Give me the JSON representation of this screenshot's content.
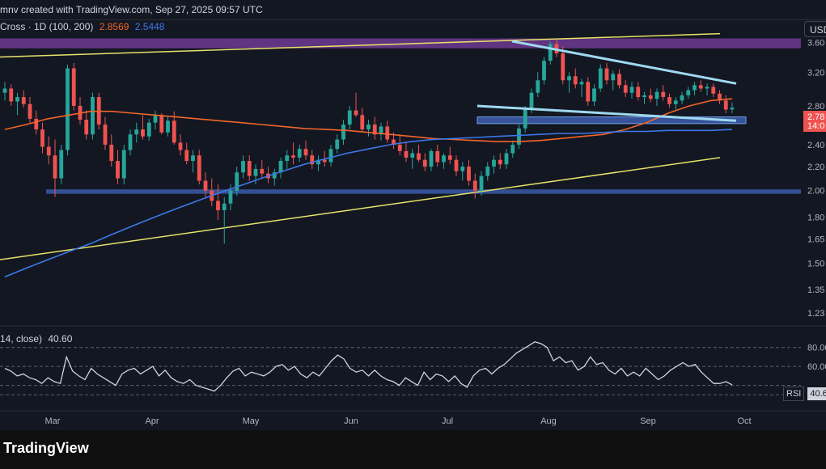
{
  "header": {
    "credit_text": "mnv created with TradingView.com, Sep 27, 2025 09:57 UTC",
    "indicator_label": "Cross · 1D (100, 200)",
    "ma_fast_value": "2.8569",
    "ma_slow_value": "2.5448",
    "currency": "USD"
  },
  "price_badge": {
    "price": "2.78",
    "countdown": "14:0"
  },
  "rsi": {
    "legend_label": "14, close)",
    "legend_value": "40.60",
    "badge_label": "RSI",
    "badge_value": "40.6"
  },
  "footer": {
    "brand": "TradingView"
  },
  "colors": {
    "background": "#131722",
    "up": "#26a69a",
    "down": "#ef5350",
    "ma_fast": "#f2652a",
    "ma_slow": "#3c78e8",
    "trendline": "#e7e36a",
    "wedge": "#9fd8f0",
    "zone_blue": "#3a5aa8",
    "zone_purple": "#7b3fa0",
    "rsi_line": "#d1d4dc"
  },
  "chart_data": {
    "type": "candlestick",
    "x_ticks": [
      "Mar",
      "Apr",
      "May",
      "Jun",
      "Jul",
      "Aug",
      "Sep",
      "Oct"
    ],
    "y_ticks": [
      "3.60",
      "3.20",
      "2.80",
      "2.40",
      "2.20",
      "2.00",
      "1.80",
      "1.65",
      "1.50",
      "1.35",
      "1.23"
    ],
    "y_scale": "log",
    "rsi_ticks": [
      "80.00",
      "60.00"
    ],
    "rsi_levels": [
      80,
      60,
      40,
      30
    ],
    "candles": [
      {
        "o": 2.95,
        "h": 3.08,
        "l": 2.86,
        "c": 3.0
      },
      {
        "o": 3.0,
        "h": 3.05,
        "l": 2.8,
        "c": 2.85
      },
      {
        "o": 2.85,
        "h": 2.95,
        "l": 2.7,
        "c": 2.9
      },
      {
        "o": 2.9,
        "h": 2.98,
        "l": 2.78,
        "c": 2.82
      },
      {
        "o": 2.82,
        "h": 2.9,
        "l": 2.62,
        "c": 2.66
      },
      {
        "o": 2.66,
        "h": 2.75,
        "l": 2.5,
        "c": 2.55
      },
      {
        "o": 2.55,
        "h": 2.62,
        "l": 2.32,
        "c": 2.38
      },
      {
        "o": 2.38,
        "h": 2.48,
        "l": 2.22,
        "c": 2.3
      },
      {
        "o": 2.3,
        "h": 2.45,
        "l": 1.95,
        "c": 2.1
      },
      {
        "o": 2.1,
        "h": 2.4,
        "l": 2.05,
        "c": 2.35
      },
      {
        "o": 2.35,
        "h": 3.3,
        "l": 2.3,
        "c": 3.25
      },
      {
        "o": 3.25,
        "h": 3.32,
        "l": 2.75,
        "c": 2.8
      },
      {
        "o": 2.8,
        "h": 2.9,
        "l": 2.6,
        "c": 2.65
      },
      {
        "o": 2.65,
        "h": 2.75,
        "l": 2.45,
        "c": 2.5
      },
      {
        "o": 2.5,
        "h": 2.95,
        "l": 2.45,
        "c": 2.9
      },
      {
        "o": 2.9,
        "h": 2.95,
        "l": 2.55,
        "c": 2.6
      },
      {
        "o": 2.6,
        "h": 2.68,
        "l": 2.35,
        "c": 2.4
      },
      {
        "o": 2.4,
        "h": 2.5,
        "l": 2.2,
        "c": 2.25
      },
      {
        "o": 2.25,
        "h": 2.35,
        "l": 2.05,
        "c": 2.1
      },
      {
        "o": 2.1,
        "h": 2.4,
        "l": 2.05,
        "c": 2.35
      },
      {
        "o": 2.35,
        "h": 2.55,
        "l": 2.3,
        "c": 2.5
      },
      {
        "o": 2.5,
        "h": 2.62,
        "l": 2.42,
        "c": 2.55
      },
      {
        "o": 2.55,
        "h": 2.7,
        "l": 2.45,
        "c": 2.48
      },
      {
        "o": 2.48,
        "h": 2.66,
        "l": 2.44,
        "c": 2.62
      },
      {
        "o": 2.62,
        "h": 2.75,
        "l": 2.55,
        "c": 2.7
      },
      {
        "o": 2.7,
        "h": 2.72,
        "l": 2.5,
        "c": 2.52
      },
      {
        "o": 2.52,
        "h": 2.68,
        "l": 2.48,
        "c": 2.64
      },
      {
        "o": 2.64,
        "h": 2.74,
        "l": 2.4,
        "c": 2.42
      },
      {
        "o": 2.42,
        "h": 2.5,
        "l": 2.3,
        "c": 2.35
      },
      {
        "o": 2.35,
        "h": 2.42,
        "l": 2.22,
        "c": 2.25
      },
      {
        "o": 2.25,
        "h": 2.35,
        "l": 2.15,
        "c": 2.3
      },
      {
        "o": 2.3,
        "h": 2.35,
        "l": 2.05,
        "c": 2.08
      },
      {
        "o": 2.08,
        "h": 2.15,
        "l": 1.95,
        "c": 2.0
      },
      {
        "o": 2.0,
        "h": 2.1,
        "l": 1.88,
        "c": 1.92
      },
      {
        "o": 1.92,
        "h": 2.05,
        "l": 1.78,
        "c": 1.85
      },
      {
        "o": 1.85,
        "h": 1.95,
        "l": 1.62,
        "c": 1.9
      },
      {
        "o": 1.9,
        "h": 2.05,
        "l": 1.85,
        "c": 2.0
      },
      {
        "o": 2.0,
        "h": 2.2,
        "l": 1.96,
        "c": 2.15
      },
      {
        "o": 2.15,
        "h": 2.3,
        "l": 2.1,
        "c": 2.25
      },
      {
        "o": 2.25,
        "h": 2.3,
        "l": 2.08,
        "c": 2.12
      },
      {
        "o": 2.12,
        "h": 2.22,
        "l": 2.05,
        "c": 2.18
      },
      {
        "o": 2.18,
        "h": 2.26,
        "l": 2.1,
        "c": 2.14
      },
      {
        "o": 2.14,
        "h": 2.2,
        "l": 2.06,
        "c": 2.1
      },
      {
        "o": 2.1,
        "h": 2.18,
        "l": 2.04,
        "c": 2.15
      },
      {
        "o": 2.15,
        "h": 2.28,
        "l": 2.1,
        "c": 2.25
      },
      {
        "o": 2.25,
        "h": 2.35,
        "l": 2.18,
        "c": 2.3
      },
      {
        "o": 2.3,
        "h": 2.42,
        "l": 2.22,
        "c": 2.28
      },
      {
        "o": 2.28,
        "h": 2.4,
        "l": 2.24,
        "c": 2.36
      },
      {
        "o": 2.36,
        "h": 2.44,
        "l": 2.26,
        "c": 2.3
      },
      {
        "o": 2.3,
        "h": 2.35,
        "l": 2.18,
        "c": 2.22
      },
      {
        "o": 2.22,
        "h": 2.3,
        "l": 2.16,
        "c": 2.26
      },
      {
        "o": 2.26,
        "h": 2.34,
        "l": 2.2,
        "c": 2.24
      },
      {
        "o": 2.24,
        "h": 2.4,
        "l": 2.2,
        "c": 2.36
      },
      {
        "o": 2.36,
        "h": 2.5,
        "l": 2.32,
        "c": 2.45
      },
      {
        "o": 2.45,
        "h": 2.65,
        "l": 2.4,
        "c": 2.6
      },
      {
        "o": 2.6,
        "h": 2.8,
        "l": 2.55,
        "c": 2.75
      },
      {
        "o": 2.75,
        "h": 2.95,
        "l": 2.68,
        "c": 2.7
      },
      {
        "o": 2.7,
        "h": 2.78,
        "l": 2.52,
        "c": 2.55
      },
      {
        "o": 2.55,
        "h": 2.65,
        "l": 2.48,
        "c": 2.6
      },
      {
        "o": 2.6,
        "h": 2.68,
        "l": 2.45,
        "c": 2.5
      },
      {
        "o": 2.5,
        "h": 2.62,
        "l": 2.44,
        "c": 2.58
      },
      {
        "o": 2.58,
        "h": 2.64,
        "l": 2.42,
        "c": 2.45
      },
      {
        "o": 2.45,
        "h": 2.52,
        "l": 2.36,
        "c": 2.4
      },
      {
        "o": 2.4,
        "h": 2.5,
        "l": 2.3,
        "c": 2.34
      },
      {
        "o": 2.34,
        "h": 2.42,
        "l": 2.24,
        "c": 2.28
      },
      {
        "o": 2.28,
        "h": 2.36,
        "l": 2.18,
        "c": 2.32
      },
      {
        "o": 2.32,
        "h": 2.4,
        "l": 2.24,
        "c": 2.26
      },
      {
        "o": 2.26,
        "h": 2.32,
        "l": 2.16,
        "c": 2.2
      },
      {
        "o": 2.2,
        "h": 2.36,
        "l": 2.16,
        "c": 2.34
      },
      {
        "o": 2.34,
        "h": 2.4,
        "l": 2.2,
        "c": 2.24
      },
      {
        "o": 2.24,
        "h": 2.32,
        "l": 2.18,
        "c": 2.3
      },
      {
        "o": 2.3,
        "h": 2.38,
        "l": 2.22,
        "c": 2.26
      },
      {
        "o": 2.26,
        "h": 2.3,
        "l": 2.12,
        "c": 2.16
      },
      {
        "o": 2.16,
        "h": 2.24,
        "l": 2.08,
        "c": 2.2
      },
      {
        "o": 2.2,
        "h": 2.26,
        "l": 2.04,
        "c": 2.08
      },
      {
        "o": 2.08,
        "h": 2.14,
        "l": 1.94,
        "c": 2.0
      },
      {
        "o": 2.0,
        "h": 2.16,
        "l": 1.96,
        "c": 2.12
      },
      {
        "o": 2.12,
        "h": 2.24,
        "l": 2.08,
        "c": 2.2
      },
      {
        "o": 2.2,
        "h": 2.3,
        "l": 2.14,
        "c": 2.26
      },
      {
        "o": 2.26,
        "h": 2.32,
        "l": 2.18,
        "c": 2.22
      },
      {
        "o": 2.22,
        "h": 2.36,
        "l": 2.18,
        "c": 2.32
      },
      {
        "o": 2.32,
        "h": 2.44,
        "l": 2.28,
        "c": 2.4
      },
      {
        "o": 2.4,
        "h": 2.6,
        "l": 2.36,
        "c": 2.56
      },
      {
        "o": 2.56,
        "h": 2.8,
        "l": 2.52,
        "c": 2.76
      },
      {
        "o": 2.76,
        "h": 3.0,
        "l": 2.72,
        "c": 2.95
      },
      {
        "o": 2.95,
        "h": 3.2,
        "l": 2.9,
        "c": 3.1
      },
      {
        "o": 3.1,
        "h": 3.4,
        "l": 3.05,
        "c": 3.35
      },
      {
        "o": 3.35,
        "h": 3.62,
        "l": 3.3,
        "c": 3.58
      },
      {
        "o": 3.58,
        "h": 3.65,
        "l": 3.4,
        "c": 3.45
      },
      {
        "o": 3.45,
        "h": 3.55,
        "l": 3.05,
        "c": 3.1
      },
      {
        "o": 3.1,
        "h": 3.2,
        "l": 2.95,
        "c": 3.15
      },
      {
        "o": 3.15,
        "h": 3.25,
        "l": 3.0,
        "c": 3.05
      },
      {
        "o": 3.05,
        "h": 3.12,
        "l": 2.9,
        "c": 3.08
      },
      {
        "o": 3.08,
        "h": 3.14,
        "l": 2.8,
        "c": 2.85
      },
      {
        "o": 2.85,
        "h": 3.05,
        "l": 2.8,
        "c": 3.0
      },
      {
        "o": 3.0,
        "h": 3.3,
        "l": 2.96,
        "c": 3.25
      },
      {
        "o": 3.25,
        "h": 3.32,
        "l": 3.05,
        "c": 3.1
      },
      {
        "o": 3.1,
        "h": 3.22,
        "l": 2.98,
        "c": 3.18
      },
      {
        "o": 3.18,
        "h": 3.24,
        "l": 3.0,
        "c": 3.04
      },
      {
        "o": 3.04,
        "h": 3.1,
        "l": 2.9,
        "c": 2.95
      },
      {
        "o": 2.95,
        "h": 3.08,
        "l": 2.88,
        "c": 3.02
      },
      {
        "o": 3.02,
        "h": 3.08,
        "l": 2.86,
        "c": 2.9
      },
      {
        "o": 2.9,
        "h": 2.96,
        "l": 2.82,
        "c": 2.92
      },
      {
        "o": 2.92,
        "h": 3.0,
        "l": 2.84,
        "c": 2.88
      },
      {
        "o": 2.88,
        "h": 3.0,
        "l": 2.8,
        "c": 2.96
      },
      {
        "o": 2.96,
        "h": 3.04,
        "l": 2.86,
        "c": 2.9
      },
      {
        "o": 2.9,
        "h": 2.94,
        "l": 2.78,
        "c": 2.82
      },
      {
        "o": 2.82,
        "h": 2.9,
        "l": 2.76,
        "c": 2.86
      },
      {
        "o": 2.86,
        "h": 2.96,
        "l": 2.82,
        "c": 2.92
      },
      {
        "o": 2.92,
        "h": 3.02,
        "l": 2.88,
        "c": 2.98
      },
      {
        "o": 2.98,
        "h": 3.08,
        "l": 2.92,
        "c": 3.04
      },
      {
        "o": 3.04,
        "h": 3.1,
        "l": 2.96,
        "c": 3.0
      },
      {
        "o": 3.0,
        "h": 3.06,
        "l": 2.92,
        "c": 3.02
      },
      {
        "o": 3.02,
        "h": 3.06,
        "l": 2.9,
        "c": 2.94
      },
      {
        "o": 2.94,
        "h": 2.98,
        "l": 2.82,
        "c": 2.86
      },
      {
        "o": 2.86,
        "h": 2.92,
        "l": 2.72,
        "c": 2.76
      },
      {
        "o": 2.76,
        "h": 2.84,
        "l": 2.72,
        "c": 2.78
      }
    ],
    "ma_fast": [
      2.55,
      2.6,
      2.66,
      2.7,
      2.74,
      2.74,
      2.72,
      2.7,
      2.68,
      2.66,
      2.64,
      2.62,
      2.6,
      2.58,
      2.56,
      2.55,
      2.54,
      2.52,
      2.5,
      2.48,
      2.46,
      2.45,
      2.44,
      2.43,
      2.43,
      2.44,
      2.46,
      2.48,
      2.5,
      2.55,
      2.62,
      2.72,
      2.8,
      2.86,
      2.88
    ],
    "ma_slow": [
      1.42,
      1.47,
      1.52,
      1.57,
      1.62,
      1.68,
      1.74,
      1.8,
      1.86,
      1.92,
      1.98,
      2.04,
      2.1,
      2.16,
      2.22,
      2.27,
      2.32,
      2.36,
      2.4,
      2.43,
      2.45,
      2.46,
      2.47,
      2.48,
      2.49,
      2.5,
      2.51,
      2.51,
      2.52,
      2.53,
      2.53,
      2.54,
      2.54,
      2.54,
      2.55
    ],
    "rsi": [
      58,
      55,
      50,
      52,
      48,
      46,
      42,
      48,
      44,
      42,
      70,
      55,
      50,
      46,
      58,
      52,
      48,
      44,
      40,
      52,
      56,
      58,
      52,
      56,
      60,
      50,
      56,
      48,
      44,
      42,
      46,
      40,
      38,
      36,
      34,
      40,
      48,
      55,
      58,
      50,
      54,
      52,
      50,
      54,
      60,
      62,
      56,
      60,
      52,
      48,
      54,
      50,
      58,
      66,
      72,
      68,
      58,
      54,
      56,
      50,
      56,
      50,
      46,
      44,
      40,
      48,
      44,
      40,
      54,
      46,
      52,
      50,
      44,
      50,
      42,
      38,
      50,
      56,
      58,
      52,
      58,
      62,
      68,
      74,
      78,
      82,
      86,
      84,
      80,
      66,
      70,
      64,
      66,
      56,
      60,
      70,
      62,
      64,
      56,
      52,
      58,
      50,
      54,
      50,
      58,
      52,
      46,
      50,
      56,
      60,
      64,
      60,
      62,
      54,
      48,
      42,
      42,
      44,
      40.6
    ]
  }
}
